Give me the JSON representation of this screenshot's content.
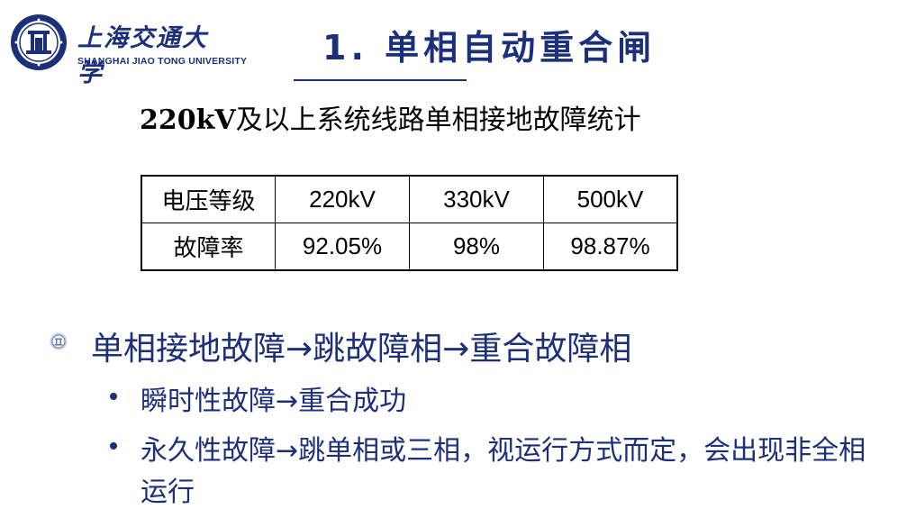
{
  "header": {
    "university_cn": "上海交通大学",
    "university_en": "SHANGHAI JIAO TONG UNIVERSITY",
    "title": "1. 单相自动重合闸"
  },
  "subtitle": {
    "voltage": "220kV",
    "text": "及以上系统线路单相接地故障统计"
  },
  "table": {
    "header_row": [
      "电压等级",
      "220kV",
      "330kV",
      "500kV"
    ],
    "data_row": [
      "故障率",
      "92.05%",
      "98%",
      "98.87%"
    ]
  },
  "bullets": {
    "main": "单相接地故障→跳故障相→重合故障相",
    "sub": [
      "瞬时性故障→重合成功",
      "永久性故障→跳单相或三相，视运行方式而定，会出现非全相运行"
    ]
  },
  "colors": {
    "primary": "#1b2f7a"
  },
  "icons": {
    "logo": "university-emblem-icon",
    "bullet": "emblem-bullet-icon"
  }
}
